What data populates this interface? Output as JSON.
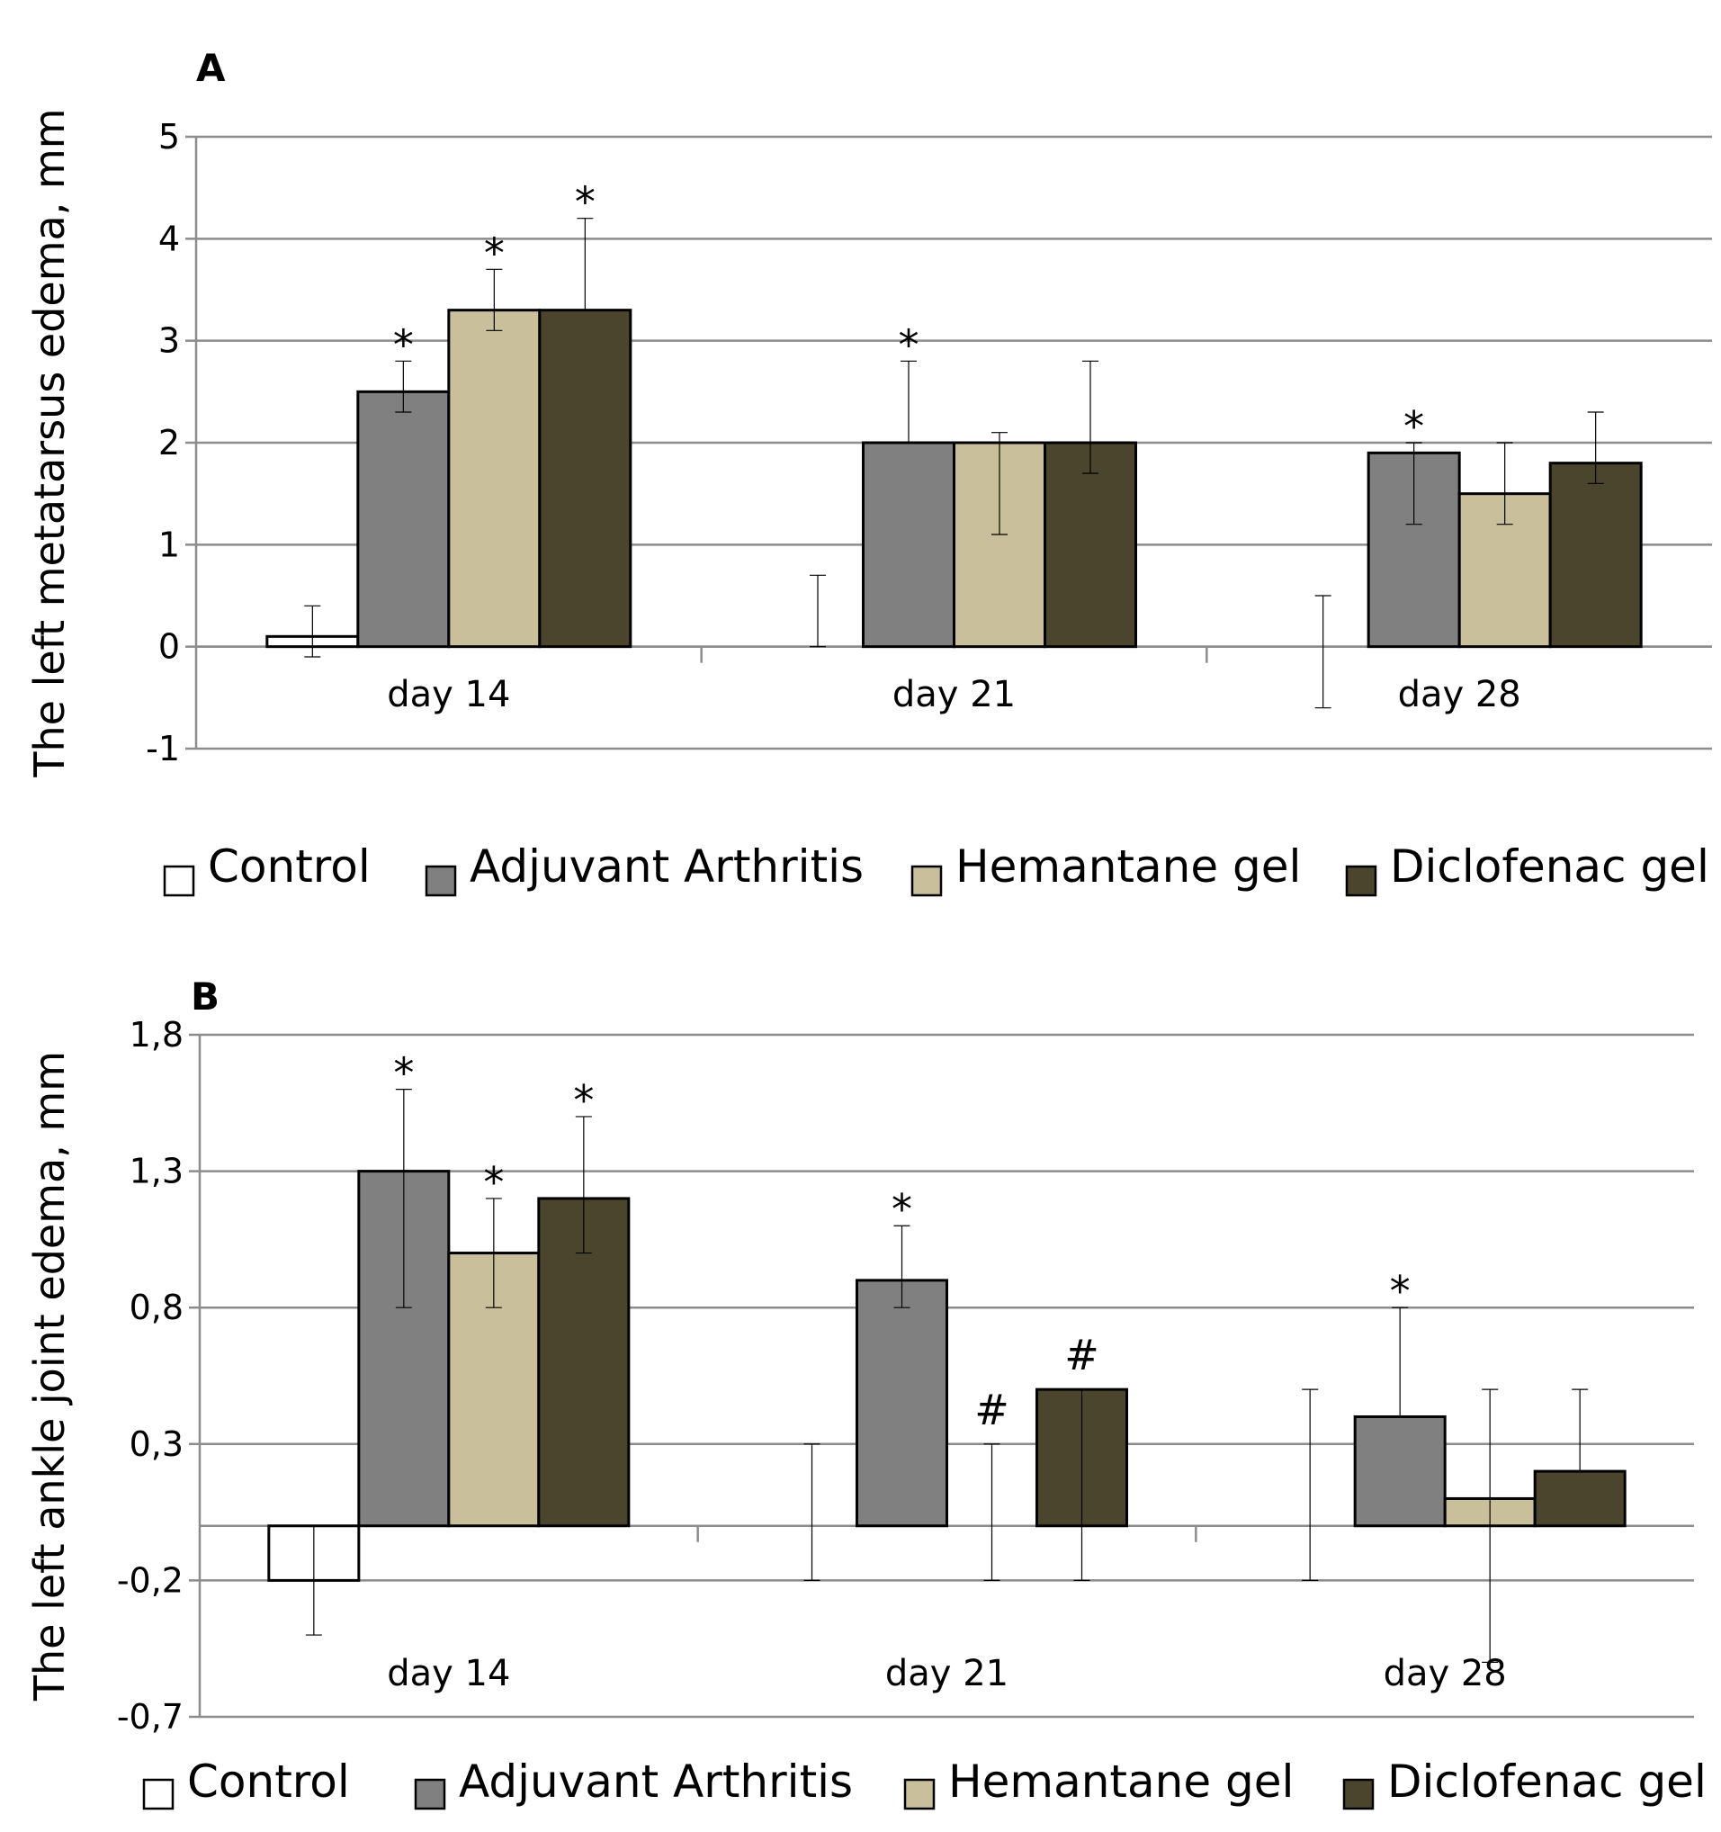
{
  "chart_data": [
    {
      "type": "bar",
      "panel_label": "A",
      "ylabel": "The left metatarsus edema, mm",
      "xlabel": "",
      "ylim": [
        -1,
        5
      ],
      "yticks": [
        "5",
        "4",
        "3",
        "2",
        "1",
        "0",
        "-1"
      ],
      "ytick_values": [
        5,
        4,
        3,
        2,
        1,
        0,
        -1
      ],
      "categories": [
        "day 14",
        "day 21",
        "day 28"
      ],
      "series": [
        {
          "name": "Control",
          "color": "#ffffff",
          "values": [
            0.1,
            0,
            0
          ],
          "err_low": [
            -0.1,
            0,
            -0.6
          ],
          "err_high": [
            0.4,
            0.7,
            0.5
          ],
          "marks": [
            "",
            "",
            ""
          ]
        },
        {
          "name": "Adjuvant Arthritis",
          "color": "#808080",
          "values": [
            2.5,
            2.0,
            1.9
          ],
          "err_low": [
            2.3,
            2.0,
            1.2
          ],
          "err_high": [
            2.8,
            2.8,
            2.0
          ],
          "marks": [
            "*",
            "*",
            "*"
          ]
        },
        {
          "name": "Hemantane gel",
          "color": "#c9bf9a",
          "values": [
            3.3,
            2.0,
            1.5
          ],
          "err_low": [
            3.1,
            1.1,
            1.2
          ],
          "err_high": [
            3.7,
            2.1,
            2.0
          ],
          "marks": [
            "*",
            "",
            ""
          ]
        },
        {
          "name": "Diclofenac gel",
          "color": "#4b452d",
          "values": [
            3.3,
            2.0,
            1.8
          ],
          "err_low": [
            3.3,
            1.7,
            1.6
          ],
          "err_high": [
            4.2,
            2.8,
            2.3
          ],
          "marks": [
            "*",
            "",
            ""
          ]
        }
      ],
      "grid": true,
      "legend_position": "bottom"
    },
    {
      "type": "bar",
      "panel_label": "B",
      "ylabel": "The left ankle joint edema, mm",
      "xlabel": "",
      "ylim": [
        -0.7,
        1.8
      ],
      "yticks": [
        "1,8",
        "1,3",
        "0,8",
        "0,3",
        "-0,2",
        "-0,7"
      ],
      "ytick_values": [
        1.8,
        1.3,
        0.8,
        0.3,
        -0.2,
        -0.7
      ],
      "categories": [
        "day 14",
        "day 21",
        "day 28"
      ],
      "series": [
        {
          "name": "Control",
          "color": "#ffffff",
          "values": [
            -0.2,
            0,
            0
          ],
          "err_low": [
            -0.4,
            -0.2,
            -0.2
          ],
          "err_high": [
            0,
            0.3,
            0.5
          ],
          "marks": [
            "",
            "",
            ""
          ]
        },
        {
          "name": "Adjuvant Arthritis",
          "color": "#808080",
          "values": [
            1.3,
            0.9,
            0.4
          ],
          "err_low": [
            0.8,
            0.8,
            0.4
          ],
          "err_high": [
            1.6,
            1.1,
            0.8
          ],
          "marks": [
            "*",
            "*",
            "*"
          ]
        },
        {
          "name": "Hemantane gel",
          "color": "#c9bf9a",
          "values": [
            1.0,
            0,
            0.1
          ],
          "err_low": [
            0.8,
            -0.2,
            -0.5
          ],
          "err_high": [
            1.2,
            0.3,
            0.5
          ],
          "marks": [
            "*",
            "#",
            ""
          ]
        },
        {
          "name": "Diclofenac gel",
          "color": "#4b452d",
          "values": [
            1.2,
            0.5,
            0.2
          ],
          "err_low": [
            1.0,
            -0.2,
            0.2
          ],
          "err_high": [
            1.5,
            0.5,
            0.5
          ],
          "marks": [
            "*",
            "#",
            ""
          ]
        }
      ],
      "grid": true,
      "legend_position": "bottom"
    }
  ]
}
